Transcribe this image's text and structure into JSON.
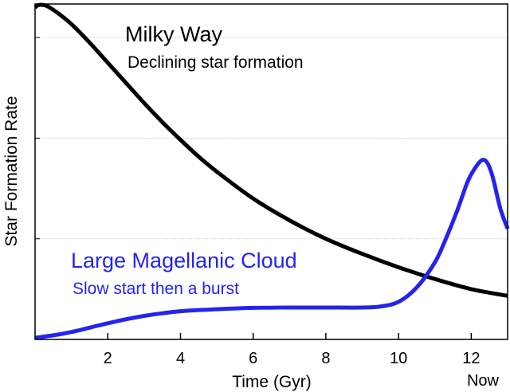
{
  "chart_data": {
    "type": "line",
    "title": "",
    "xlabel": "Time (Gyr)",
    "ylabel": "Star Formation Rate",
    "xlim": [
      0,
      13
    ],
    "ylim": [
      0,
      1.0
    ],
    "grid": "horizontal",
    "x_ticks": [
      2,
      4,
      6,
      8,
      10,
      12
    ],
    "x_tick_labels": [
      "2",
      "4",
      "6",
      "8",
      "10",
      "12"
    ],
    "x_extra_label": "Now",
    "y_ticks": [
      0.3,
      0.6,
      0.9
    ],
    "series": [
      {
        "name": "Milky Way",
        "subtitle": "Declining star formation",
        "color": "#000000",
        "x": [
          0,
          0.1,
          0.3,
          0.6,
          1,
          1.5,
          2,
          2.5,
          3,
          3.5,
          4,
          4.5,
          5,
          6,
          7,
          8,
          9,
          10,
          11,
          12,
          13
        ],
        "y": [
          0.99,
          0.997,
          0.995,
          0.975,
          0.94,
          0.885,
          0.825,
          0.765,
          0.705,
          0.648,
          0.595,
          0.545,
          0.5,
          0.42,
          0.355,
          0.3,
          0.255,
          0.215,
          0.18,
          0.15,
          0.13
        ]
      },
      {
        "name": "Large Magellanic Cloud",
        "subtitle": "Slow start then a burst",
        "color": "#2424ee",
        "x": [
          0,
          0.5,
          1,
          1.5,
          2,
          2.5,
          3,
          3.5,
          4,
          5,
          6,
          7,
          8,
          9,
          9.5,
          10,
          10.5,
          11,
          11.3,
          11.6,
          11.9,
          12.1,
          12.3,
          12.45,
          12.6,
          12.8,
          13
        ],
        "y": [
          0.005,
          0.012,
          0.022,
          0.035,
          0.048,
          0.06,
          0.07,
          0.078,
          0.084,
          0.09,
          0.094,
          0.095,
          0.095,
          0.095,
          0.098,
          0.112,
          0.155,
          0.23,
          0.3,
          0.38,
          0.47,
          0.51,
          0.535,
          0.525,
          0.48,
          0.39,
          0.33
        ]
      }
    ]
  }
}
